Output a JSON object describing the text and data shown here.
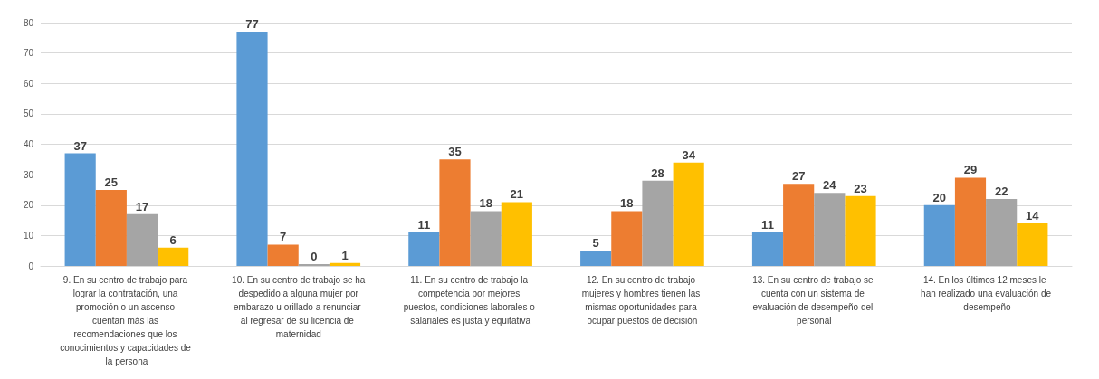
{
  "chart_data": {
    "type": "bar",
    "categories": [
      "9. En su centro de trabajo para lograr la contratación, una promoción o un ascenso cuentan más las recomendaciones que los conocimientos y capacidades de la persona",
      "10. En su centro de trabajo se ha despedido a alguna mujer por embarazo u orillado a renunciar al regresar de su licencia de maternidad",
      "11. En su centro de trabajo la competencia por mejores puestos, condiciones laborales o salariales es justa y equitativa",
      "12. En su centro de trabajo mujeres y hombres tienen las mismas oportunidades para ocupar puestos de decisión",
      "13. En su centro de trabajo se cuenta con un sistema de evaluación de desempeño del personal",
      "14. En los últimos 12 meses le han realizado una evaluación de desempeño"
    ],
    "series": [
      {
        "color": "#5b9bd5",
        "values": [
          37,
          77,
          11,
          5,
          11,
          20
        ]
      },
      {
        "color": "#ed7d31",
        "values": [
          25,
          7,
          35,
          18,
          27,
          29
        ]
      },
      {
        "color": "#a5a5a5",
        "values": [
          17,
          0,
          18,
          28,
          24,
          22
        ]
      },
      {
        "color": "#ffc000",
        "values": [
          6,
          1,
          21,
          34,
          23,
          14
        ]
      }
    ],
    "ylim": [
      0,
      80
    ],
    "yticks": [
      0,
      10,
      20,
      30,
      40,
      50,
      60,
      70,
      80
    ],
    "grid": "y",
    "data_labels": true
  }
}
